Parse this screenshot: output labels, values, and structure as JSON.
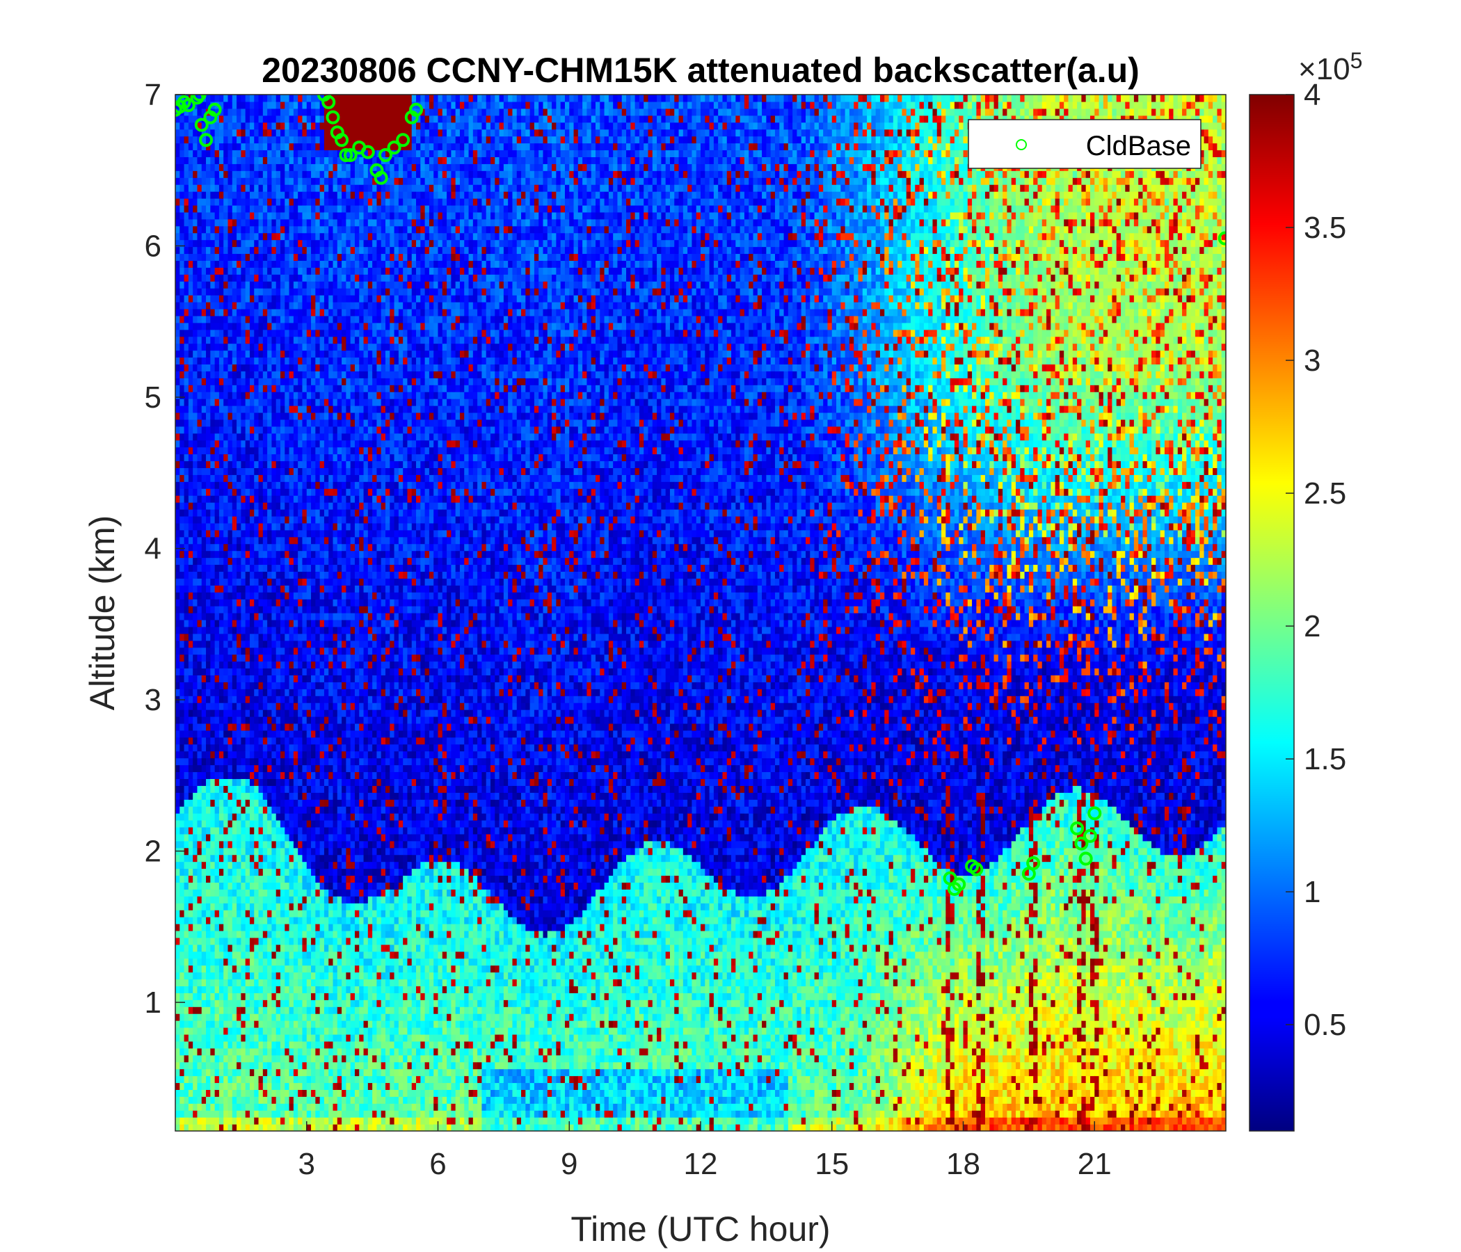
{
  "chart_data": {
    "type": "heatmap",
    "title": "20230806 CCNY-CHM15K attenuated backscatter(a.u)",
    "xlabel": "Time (UTC hour)",
    "ylabel": "Altitude (km)",
    "xlim": [
      0,
      24
    ],
    "ylim": [
      0.15,
      7
    ],
    "x_ticks": [
      3,
      6,
      9,
      12,
      15,
      18,
      21
    ],
    "y_ticks": [
      1,
      2,
      3,
      4,
      5,
      6,
      7
    ],
    "colormap": "jet",
    "color_range": [
      10000,
      400000
    ],
    "colorbar": {
      "ticks": [
        0.5,
        1,
        1.5,
        2,
        2.5,
        3,
        3.5,
        4
      ],
      "exponent_label": "×10",
      "exponent_power": "5"
    },
    "legend": {
      "position": "top-right",
      "entries": [
        {
          "name": "CldBase",
          "marker": "circle",
          "color": "#00ff00"
        }
      ]
    },
    "cloud_base_points": {
      "name": "CldBase",
      "x": [
        0.0,
        0.1,
        0.2,
        0.3,
        0.5,
        0.55,
        0.6,
        0.7,
        0.8,
        0.9,
        3.4,
        3.5,
        3.6,
        3.7,
        3.8,
        3.9,
        4.0,
        4.2,
        4.4,
        4.6,
        4.7,
        4.8,
        5.0,
        5.2,
        5.4,
        5.5,
        17.7,
        17.8,
        17.9,
        18.2,
        18.3,
        19.5,
        19.6,
        20.6,
        20.7,
        20.8,
        20.9,
        21.0,
        23.98
      ],
      "y": [
        6.9,
        6.92,
        6.95,
        6.93,
        6.98,
        7.0,
        6.8,
        6.7,
        6.85,
        6.9,
        7.0,
        6.95,
        6.85,
        6.75,
        6.7,
        6.6,
        6.6,
        6.65,
        6.62,
        6.5,
        6.45,
        6.6,
        6.65,
        6.7,
        6.85,
        6.9,
        1.82,
        1.75,
        1.78,
        1.9,
        1.88,
        1.85,
        1.92,
        2.15,
        2.05,
        1.95,
        2.1,
        2.25,
        6.05
      ]
    }
  }
}
